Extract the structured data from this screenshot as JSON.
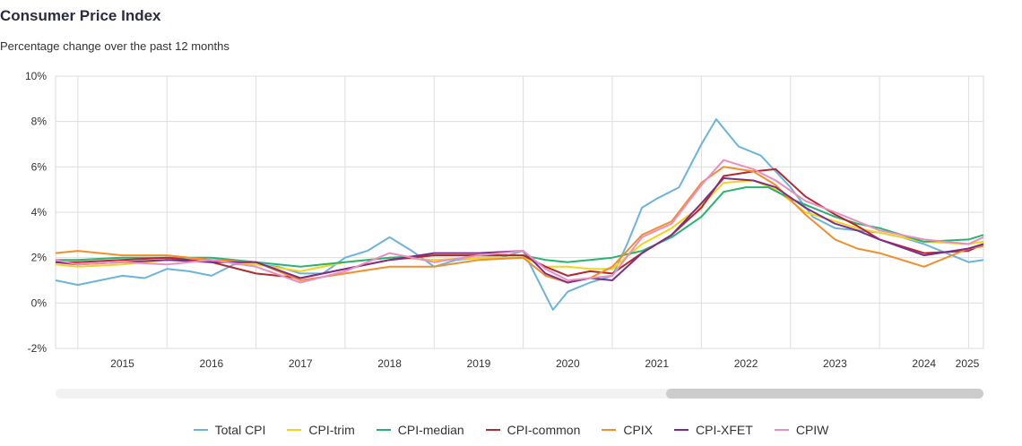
{
  "header": {
    "title": "Consumer Price Index",
    "subtitle": "Percentage change over the past 12 months"
  },
  "chart_data": {
    "type": "line",
    "title": "Consumer Price Index",
    "subtitle": "Percentage change over the past 12 months",
    "xlabel": "",
    "ylabel": "",
    "x_ticks": [
      "2015",
      "2016",
      "2017",
      "2018",
      "2019",
      "2020",
      "2021",
      "2022",
      "2023",
      "2024",
      "2025"
    ],
    "xlim": [
      "2014-10",
      "2025-03"
    ],
    "ylim": [
      -2,
      10
    ],
    "y_ticks": [
      -2,
      0,
      2,
      4,
      6,
      8,
      10
    ],
    "y_tick_labels": [
      "-2%",
      "0%",
      "2%",
      "4%",
      "6%",
      "8%",
      "10%"
    ],
    "grid": true,
    "legend_position": "bottom",
    "series": [
      {
        "name": "Total CPI",
        "color": "#6cb4d8",
        "points": [
          [
            "2014-10",
            1.0
          ],
          [
            "2015-01",
            0.8
          ],
          [
            "2015-04",
            1.0
          ],
          [
            "2015-07",
            1.2
          ],
          [
            "2015-10",
            1.1
          ],
          [
            "2016-01",
            1.5
          ],
          [
            "2016-04",
            1.4
          ],
          [
            "2016-07",
            1.2
          ],
          [
            "2016-10",
            1.7
          ],
          [
            "2017-01",
            1.7
          ],
          [
            "2017-04",
            1.6
          ],
          [
            "2017-07",
            1.3
          ],
          [
            "2017-10",
            1.3
          ],
          [
            "2018-01",
            2.0
          ],
          [
            "2018-04",
            2.3
          ],
          [
            "2018-07",
            2.9
          ],
          [
            "2018-10",
            2.3
          ],
          [
            "2019-01",
            1.6
          ],
          [
            "2019-04",
            1.9
          ],
          [
            "2019-07",
            2.0
          ],
          [
            "2019-10",
            2.0
          ],
          [
            "2020-01",
            2.3
          ],
          [
            "2020-03",
            1.0
          ],
          [
            "2020-05",
            -0.3
          ],
          [
            "2020-07",
            0.5
          ],
          [
            "2020-10",
            0.9
          ],
          [
            "2021-01",
            1.2
          ],
          [
            "2021-03",
            2.6
          ],
          [
            "2021-05",
            4.2
          ],
          [
            "2021-07",
            4.6
          ],
          [
            "2021-10",
            5.1
          ],
          [
            "2022-01",
            7.0
          ],
          [
            "2022-03",
            8.1
          ],
          [
            "2022-06",
            6.9
          ],
          [
            "2022-09",
            6.5
          ],
          [
            "2023-01",
            5.1
          ],
          [
            "2023-04",
            3.8
          ],
          [
            "2023-07",
            3.3
          ],
          [
            "2023-10",
            3.2
          ],
          [
            "2024-01",
            3.1
          ],
          [
            "2024-04",
            2.9
          ],
          [
            "2024-07",
            2.6
          ],
          [
            "2024-10",
            2.2
          ],
          [
            "2025-01",
            1.8
          ],
          [
            "2025-03",
            1.9
          ]
        ]
      },
      {
        "name": "CPI-trim",
        "color": "#f5d316",
        "points": [
          [
            "2014-10",
            1.7
          ],
          [
            "2015-01",
            1.6
          ],
          [
            "2015-07",
            1.7
          ],
          [
            "2016-01",
            1.9
          ],
          [
            "2016-07",
            1.9
          ],
          [
            "2017-01",
            1.7
          ],
          [
            "2017-07",
            1.4
          ],
          [
            "2018-01",
            1.8
          ],
          [
            "2018-07",
            2.0
          ],
          [
            "2019-01",
            1.9
          ],
          [
            "2019-07",
            2.0
          ],
          [
            "2020-01",
            2.0
          ],
          [
            "2020-04",
            1.6
          ],
          [
            "2020-07",
            1.6
          ],
          [
            "2020-10",
            1.5
          ],
          [
            "2021-01",
            1.5
          ],
          [
            "2021-05",
            2.6
          ],
          [
            "2021-09",
            3.3
          ],
          [
            "2022-01",
            4.3
          ],
          [
            "2022-04",
            5.3
          ],
          [
            "2022-08",
            5.4
          ],
          [
            "2022-11",
            5.0
          ],
          [
            "2023-03",
            4.0
          ],
          [
            "2023-07",
            3.6
          ],
          [
            "2023-10",
            3.3
          ],
          [
            "2024-01",
            3.1
          ],
          [
            "2024-07",
            2.7
          ],
          [
            "2025-01",
            2.6
          ],
          [
            "2025-03",
            2.7
          ]
        ]
      },
      {
        "name": "CPI-median",
        "color": "#27b46e",
        "points": [
          [
            "2014-10",
            1.9
          ],
          [
            "2015-01",
            1.9
          ],
          [
            "2015-07",
            2.0
          ],
          [
            "2016-01",
            2.0
          ],
          [
            "2016-07",
            2.0
          ],
          [
            "2017-01",
            1.8
          ],
          [
            "2017-07",
            1.6
          ],
          [
            "2018-01",
            1.8
          ],
          [
            "2018-07",
            2.0
          ],
          [
            "2019-01",
            2.1
          ],
          [
            "2019-07",
            2.1
          ],
          [
            "2020-01",
            2.1
          ],
          [
            "2020-04",
            1.9
          ],
          [
            "2020-07",
            1.8
          ],
          [
            "2020-10",
            1.9
          ],
          [
            "2021-01",
            2.0
          ],
          [
            "2021-05",
            2.3
          ],
          [
            "2021-09",
            2.9
          ],
          [
            "2022-01",
            3.8
          ],
          [
            "2022-04",
            4.9
          ],
          [
            "2022-07",
            5.1
          ],
          [
            "2022-10",
            5.1
          ],
          [
            "2023-01",
            4.6
          ],
          [
            "2023-04",
            4.2
          ],
          [
            "2023-07",
            3.8
          ],
          [
            "2023-10",
            3.5
          ],
          [
            "2024-01",
            3.3
          ],
          [
            "2024-07",
            2.7
          ],
          [
            "2025-01",
            2.8
          ],
          [
            "2025-03",
            3.0
          ]
        ]
      },
      {
        "name": "CPI-common",
        "color": "#b22a2e",
        "points": [
          [
            "2014-10",
            1.8
          ],
          [
            "2015-01",
            1.8
          ],
          [
            "2015-07",
            1.9
          ],
          [
            "2016-01",
            2.0
          ],
          [
            "2016-07",
            1.8
          ],
          [
            "2017-01",
            1.3
          ],
          [
            "2017-07",
            1.1
          ],
          [
            "2018-01",
            1.5
          ],
          [
            "2018-07",
            1.9
          ],
          [
            "2019-01",
            2.1
          ],
          [
            "2019-07",
            2.1
          ],
          [
            "2020-01",
            2.1
          ],
          [
            "2020-04",
            1.6
          ],
          [
            "2020-07",
            1.2
          ],
          [
            "2020-10",
            1.4
          ],
          [
            "2021-01",
            1.3
          ],
          [
            "2021-05",
            2.2
          ],
          [
            "2021-09",
            3.0
          ],
          [
            "2022-01",
            4.2
          ],
          [
            "2022-04",
            5.6
          ],
          [
            "2022-08",
            5.8
          ],
          [
            "2022-11",
            5.9
          ],
          [
            "2023-03",
            4.7
          ],
          [
            "2023-07",
            3.9
          ],
          [
            "2023-10",
            3.4
          ],
          [
            "2024-01",
            2.8
          ],
          [
            "2024-07",
            2.2
          ],
          [
            "2025-01",
            2.3
          ],
          [
            "2025-03",
            2.6
          ]
        ]
      },
      {
        "name": "CPIX",
        "color": "#f28e2b",
        "points": [
          [
            "2014-10",
            2.2
          ],
          [
            "2015-01",
            2.3
          ],
          [
            "2015-07",
            2.1
          ],
          [
            "2016-01",
            2.1
          ],
          [
            "2016-07",
            1.9
          ],
          [
            "2017-01",
            1.8
          ],
          [
            "2017-07",
            1.0
          ],
          [
            "2018-01",
            1.3
          ],
          [
            "2018-07",
            1.6
          ],
          [
            "2019-01",
            1.6
          ],
          [
            "2019-07",
            1.9
          ],
          [
            "2020-01",
            2.0
          ],
          [
            "2020-04",
            1.2
          ],
          [
            "2020-07",
            0.9
          ],
          [
            "2020-10",
            1.1
          ],
          [
            "2021-01",
            1.6
          ],
          [
            "2021-05",
            3.0
          ],
          [
            "2021-09",
            3.6
          ],
          [
            "2022-01",
            5.3
          ],
          [
            "2022-04",
            6.0
          ],
          [
            "2022-08",
            5.8
          ],
          [
            "2022-11",
            5.2
          ],
          [
            "2023-03",
            3.9
          ],
          [
            "2023-07",
            2.8
          ],
          [
            "2023-10",
            2.4
          ],
          [
            "2024-01",
            2.2
          ],
          [
            "2024-07",
            1.6
          ],
          [
            "2025-01",
            2.4
          ],
          [
            "2025-03",
            2.5
          ]
        ]
      },
      {
        "name": "CPI-XFET",
        "color": "#7c2e8c",
        "points": [
          [
            "2014-10",
            1.8
          ],
          [
            "2015-01",
            1.7
          ],
          [
            "2015-07",
            1.8
          ],
          [
            "2016-01",
            1.9
          ],
          [
            "2016-07",
            1.8
          ],
          [
            "2017-01",
            1.8
          ],
          [
            "2017-07",
            1.1
          ],
          [
            "2018-01",
            1.5
          ],
          [
            "2018-07",
            1.9
          ],
          [
            "2019-01",
            2.2
          ],
          [
            "2019-07",
            2.2
          ],
          [
            "2020-01",
            2.3
          ],
          [
            "2020-04",
            1.3
          ],
          [
            "2020-07",
            0.9
          ],
          [
            "2020-10",
            1.1
          ],
          [
            "2021-01",
            1.0
          ],
          [
            "2021-05",
            2.2
          ],
          [
            "2021-09",
            3.0
          ],
          [
            "2022-01",
            4.4
          ],
          [
            "2022-04",
            5.5
          ],
          [
            "2022-08",
            5.4
          ],
          [
            "2022-11",
            5.1
          ],
          [
            "2023-03",
            4.2
          ],
          [
            "2023-07",
            3.5
          ],
          [
            "2023-10",
            3.2
          ],
          [
            "2024-01",
            2.8
          ],
          [
            "2024-07",
            2.1
          ],
          [
            "2025-01",
            2.4
          ],
          [
            "2025-03",
            2.6
          ]
        ]
      },
      {
        "name": "CPIW",
        "color": "#ea8ec2",
        "points": [
          [
            "2014-10",
            1.9
          ],
          [
            "2015-01",
            1.7
          ],
          [
            "2015-07",
            1.8
          ],
          [
            "2016-01",
            1.7
          ],
          [
            "2016-07",
            1.9
          ],
          [
            "2017-01",
            1.6
          ],
          [
            "2017-07",
            0.9
          ],
          [
            "2018-01",
            1.4
          ],
          [
            "2018-07",
            2.2
          ],
          [
            "2019-01",
            1.8
          ],
          [
            "2019-07",
            2.1
          ],
          [
            "2020-01",
            2.3
          ],
          [
            "2020-04",
            1.5
          ],
          [
            "2020-07",
            1.0
          ],
          [
            "2020-10",
            1.1
          ],
          [
            "2021-01",
            1.2
          ],
          [
            "2021-05",
            2.9
          ],
          [
            "2021-09",
            3.5
          ],
          [
            "2022-01",
            5.2
          ],
          [
            "2022-04",
            6.3
          ],
          [
            "2022-08",
            5.9
          ],
          [
            "2022-11",
            5.4
          ],
          [
            "2023-03",
            4.5
          ],
          [
            "2023-07",
            4.0
          ],
          [
            "2023-10",
            3.6
          ],
          [
            "2024-01",
            3.2
          ],
          [
            "2024-07",
            2.8
          ],
          [
            "2025-01",
            2.6
          ],
          [
            "2025-03",
            2.9
          ]
        ]
      }
    ]
  },
  "navigator": {
    "range_start": "2021-09",
    "range_end": "2025-03"
  }
}
